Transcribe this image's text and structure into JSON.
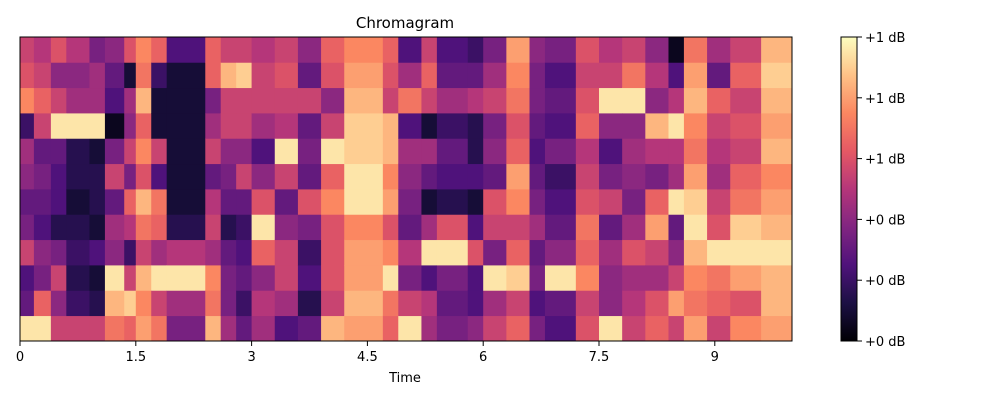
{
  "chart_data": {
    "type": "heatmap",
    "title": "Chromagram",
    "xlabel": "Time",
    "ylabel": "",
    "xlim": [
      0,
      10
    ],
    "x_ticks": [
      {
        "value": 0,
        "label": "0"
      },
      {
        "value": 1.5,
        "label": "1.5"
      },
      {
        "value": 3,
        "label": "3"
      },
      {
        "value": 4.5,
        "label": "4.5"
      },
      {
        "value": 6,
        "label": "6"
      },
      {
        "value": 7.5,
        "label": "7.5"
      },
      {
        "value": 9,
        "label": "9"
      }
    ],
    "n_rows": 12,
    "colormap": "magma",
    "colormap_stops": [
      "#000004",
      "#1c1044",
      "#4f127b",
      "#812581",
      "#b5367a",
      "#e55964",
      "#fb8761",
      "#fec287",
      "#fcfdbf"
    ],
    "value_range": [
      0,
      1
    ],
    "colorbar_ticks": [
      {
        "value": 0,
        "label": "+0 dB"
      },
      {
        "value": 0.2,
        "label": "+0 dB"
      },
      {
        "value": 0.4,
        "label": "+0 dB"
      },
      {
        "value": 0.6,
        "label": "+1 dB"
      },
      {
        "value": 0.8,
        "label": "+1 dB"
      },
      {
        "value": 1,
        "label": "+1 dB"
      }
    ],
    "time_segments": [
      {
        "t0": 0.0,
        "t1": 0.18,
        "values": [
          0.95,
          0.3,
          0.25,
          0.55,
          0.35,
          0.3,
          0.4,
          0.45,
          0.2,
          0.75,
          0.6,
          0.55
        ]
      },
      {
        "t0": 0.18,
        "t1": 0.4,
        "values": [
          0.95,
          0.65,
          0.35,
          0.4,
          0.25,
          0.3,
          0.35,
          0.3,
          0.55,
          0.65,
          0.55,
          0.5
        ]
      },
      {
        "t0": 0.4,
        "t1": 0.6,
        "values": [
          0.55,
          0.4,
          0.55,
          0.35,
          0.15,
          0.25,
          0.25,
          0.3,
          0.95,
          0.55,
          0.4,
          0.6
        ]
      },
      {
        "t0": 0.6,
        "t1": 0.9,
        "values": [
          0.55,
          0.2,
          0.15,
          0.2,
          0.15,
          0.1,
          0.15,
          0.15,
          0.95,
          0.45,
          0.4,
          0.5
        ]
      },
      {
        "t0": 0.9,
        "t1": 1.1,
        "values": [
          0.55,
          0.15,
          0.1,
          0.25,
          0.1,
          0.15,
          0.15,
          0.1,
          0.95,
          0.45,
          0.45,
          0.35
        ]
      },
      {
        "t0": 1.1,
        "t1": 1.35,
        "values": [
          0.7,
          0.85,
          0.95,
          0.4,
          0.45,
          0.3,
          0.55,
          0.35,
          0.05,
          0.25,
          0.3,
          0.4
        ]
      },
      {
        "t0": 1.35,
        "t1": 1.5,
        "values": [
          0.65,
          0.9,
          0.55,
          0.2,
          0.5,
          0.65,
          0.35,
          0.55,
          0.4,
          0.45,
          0.1,
          0.6
        ]
      },
      {
        "t0": 1.5,
        "t1": 1.7,
        "values": [
          0.8,
          0.75,
          0.85,
          0.55,
          0.7,
          0.85,
          0.6,
          0.75,
          0.65,
          0.85,
          0.7,
          0.75
        ]
      },
      {
        "t0": 1.7,
        "t1": 1.9,
        "values": [
          0.7,
          0.55,
          0.95,
          0.45,
          0.65,
          0.7,
          0.25,
          0.55,
          0.1,
          0.1,
          0.2,
          0.65
        ]
      },
      {
        "t0": 1.9,
        "t1": 2.4,
        "values": [
          0.35,
          0.45,
          0.95,
          0.5,
          0.15,
          0.1,
          0.1,
          0.1,
          0.1,
          0.1,
          0.1,
          0.25
        ]
      },
      {
        "t0": 2.4,
        "t1": 2.6,
        "values": [
          0.85,
          0.7,
          0.75,
          0.45,
          0.55,
          0.5,
          0.3,
          0.55,
          0.45,
          0.35,
          0.65,
          0.65
        ]
      },
      {
        "t0": 2.6,
        "t1": 2.8,
        "values": [
          0.45,
          0.35,
          0.35,
          0.3,
          0.15,
          0.3,
          0.35,
          0.4,
          0.55,
          0.55,
          0.85,
          0.55
        ]
      },
      {
        "t0": 2.8,
        "t1": 3.0,
        "values": [
          0.3,
          0.2,
          0.3,
          0.25,
          0.2,
          0.3,
          0.55,
          0.4,
          0.55,
          0.55,
          0.9,
          0.55
        ]
      },
      {
        "t0": 3.0,
        "t1": 3.3,
        "values": [
          0.45,
          0.5,
          0.4,
          0.65,
          0.95,
          0.6,
          0.4,
          0.25,
          0.45,
          0.55,
          0.55,
          0.5
        ]
      },
      {
        "t0": 3.3,
        "t1": 3.6,
        "values": [
          0.25,
          0.45,
          0.55,
          0.55,
          0.4,
          0.3,
          0.55,
          0.95,
          0.5,
          0.55,
          0.6,
          0.55
        ]
      },
      {
        "t0": 3.6,
        "t1": 3.9,
        "values": [
          0.3,
          0.15,
          0.25,
          0.2,
          0.35,
          0.6,
          0.3,
          0.35,
          0.3,
          0.55,
          0.3,
          0.4
        ]
      },
      {
        "t0": 3.9,
        "t1": 4.2,
        "values": [
          0.85,
          0.55,
          0.6,
          0.6,
          0.6,
          0.75,
          0.65,
          0.95,
          0.55,
          0.4,
          0.6,
          0.65
        ]
      },
      {
        "t0": 4.2,
        "t1": 4.7,
        "values": [
          0.8,
          0.85,
          0.8,
          0.8,
          0.75,
          0.95,
          0.95,
          0.9,
          0.9,
          0.85,
          0.8,
          0.75
        ]
      },
      {
        "t0": 4.7,
        "t1": 4.9,
        "values": [
          0.65,
          0.7,
          0.95,
          0.75,
          0.6,
          0.8,
          0.75,
          0.85,
          0.85,
          0.55,
          0.6,
          0.65
        ]
      },
      {
        "t0": 4.9,
        "t1": 5.2,
        "values": [
          0.95,
          0.55,
          0.35,
          0.5,
          0.3,
          0.35,
          0.4,
          0.45,
          0.25,
          0.7,
          0.45,
          0.25
        ]
      },
      {
        "t0": 5.2,
        "t1": 5.4,
        "values": [
          0.45,
          0.5,
          0.25,
          0.95,
          0.45,
          0.1,
          0.3,
          0.45,
          0.1,
          0.55,
          0.65,
          0.55
        ]
      },
      {
        "t0": 5.4,
        "t1": 5.8,
        "values": [
          0.35,
          0.3,
          0.35,
          0.95,
          0.6,
          0.15,
          0.25,
          0.3,
          0.2,
          0.45,
          0.3,
          0.25
        ]
      },
      {
        "t0": 5.8,
        "t1": 6.0,
        "values": [
          0.4,
          0.25,
          0.25,
          0.6,
          0.25,
          0.1,
          0.25,
          0.15,
          0.15,
          0.5,
          0.3,
          0.2
        ]
      },
      {
        "t0": 6.0,
        "t1": 6.3,
        "values": [
          0.55,
          0.45,
          0.95,
          0.35,
          0.55,
          0.6,
          0.3,
          0.4,
          0.35,
          0.55,
          0.45,
          0.35
        ]
      },
      {
        "t0": 6.3,
        "t1": 6.6,
        "values": [
          0.65,
          0.55,
          0.9,
          0.65,
          0.55,
          0.75,
          0.8,
          0.65,
          0.6,
          0.7,
          0.75,
          0.8
        ]
      },
      {
        "t0": 6.6,
        "t1": 6.8,
        "values": [
          0.35,
          0.25,
          0.35,
          0.3,
          0.45,
          0.35,
          0.3,
          0.25,
          0.3,
          0.35,
          0.35,
          0.4
        ]
      },
      {
        "t0": 6.8,
        "t1": 7.2,
        "values": [
          0.25,
          0.3,
          0.95,
          0.4,
          0.3,
          0.25,
          0.2,
          0.35,
          0.25,
          0.3,
          0.25,
          0.35
        ]
      },
      {
        "t0": 7.2,
        "t1": 7.5,
        "values": [
          0.6,
          0.55,
          0.75,
          0.65,
          0.7,
          0.6,
          0.55,
          0.5,
          0.65,
          0.6,
          0.55,
          0.6
        ]
      },
      {
        "t0": 7.5,
        "t1": 7.8,
        "values": [
          0.95,
          0.4,
          0.4,
          0.45,
          0.3,
          0.55,
          0.35,
          0.25,
          0.4,
          0.95,
          0.55,
          0.5
        ]
      },
      {
        "t0": 7.8,
        "t1": 8.1,
        "values": [
          0.55,
          0.5,
          0.45,
          0.6,
          0.45,
          0.35,
          0.4,
          0.45,
          0.4,
          0.95,
          0.7,
          0.55
        ]
      },
      {
        "t0": 8.1,
        "t1": 8.4,
        "values": [
          0.65,
          0.6,
          0.45,
          0.55,
          0.8,
          0.65,
          0.35,
          0.5,
          0.85,
          0.4,
          0.5,
          0.4
        ]
      },
      {
        "t0": 8.4,
        "t1": 8.6,
        "values": [
          0.55,
          0.8,
          0.55,
          0.4,
          0.3,
          0.95,
          0.45,
          0.5,
          0.95,
          0.5,
          0.25,
          0.05
        ]
      },
      {
        "t0": 8.6,
        "t1": 8.9,
        "values": [
          0.8,
          0.7,
          0.75,
          0.85,
          0.95,
          0.9,
          0.8,
          0.7,
          0.75,
          0.85,
          0.8,
          0.7
        ]
      },
      {
        "t0": 8.9,
        "t1": 9.2,
        "values": [
          0.55,
          0.65,
          0.7,
          0.95,
          0.6,
          0.55,
          0.45,
          0.5,
          0.55,
          0.65,
          0.3,
          0.45
        ]
      },
      {
        "t0": 9.2,
        "t1": 9.6,
        "values": [
          0.75,
          0.6,
          0.8,
          0.95,
          0.9,
          0.7,
          0.65,
          0.55,
          0.6,
          0.55,
          0.65,
          0.55
        ]
      },
      {
        "t0": 9.6,
        "t1": 10.0,
        "values": [
          0.8,
          0.85,
          0.85,
          0.95,
          0.85,
          0.8,
          0.75,
          0.85,
          0.8,
          0.85,
          0.9,
          0.85
        ]
      }
    ]
  }
}
